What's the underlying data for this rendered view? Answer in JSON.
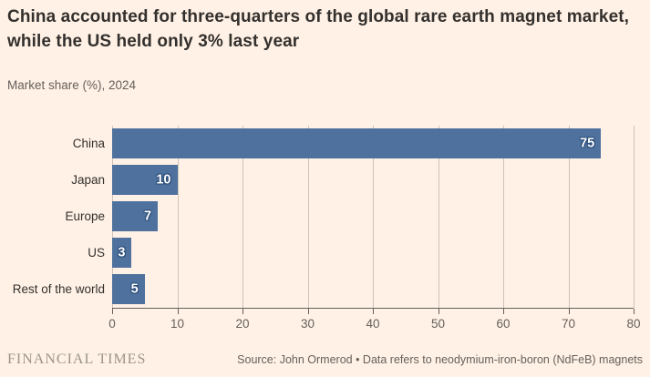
{
  "header": {
    "title": "China accounted for three-quarters of the global rare earth magnet market, while the US held only 3% last year",
    "subtitle": "Market share (%), 2024"
  },
  "chart_data": {
    "type": "bar",
    "orientation": "horizontal",
    "title": "Market share (%), 2024",
    "categories": [
      "China",
      "Japan",
      "Europe",
      "US",
      "Rest of the world"
    ],
    "values": [
      75,
      10,
      7,
      3,
      5
    ],
    "xlabel": "",
    "ylabel": "",
    "xlim": [
      0,
      80
    ],
    "x_ticks": [
      0,
      10,
      20,
      30,
      40,
      50,
      60,
      70,
      80
    ],
    "grid": "vertical",
    "legend": "none",
    "bar_color": "#4F719D",
    "value_label_color": "#FFFFFF"
  },
  "footer": {
    "brand": "FINANCIAL TIMES",
    "source": "Source: John Ormerod • Data refers to neodymium-iron-boron (NdFeB) magnets"
  },
  "colors": {
    "background": "#FFF1E5",
    "title_text": "#33302E",
    "muted_text": "#66605C",
    "gridline": "#CDC3B9",
    "bar": "#4F719D",
    "value_outline": "#2A4D79"
  }
}
